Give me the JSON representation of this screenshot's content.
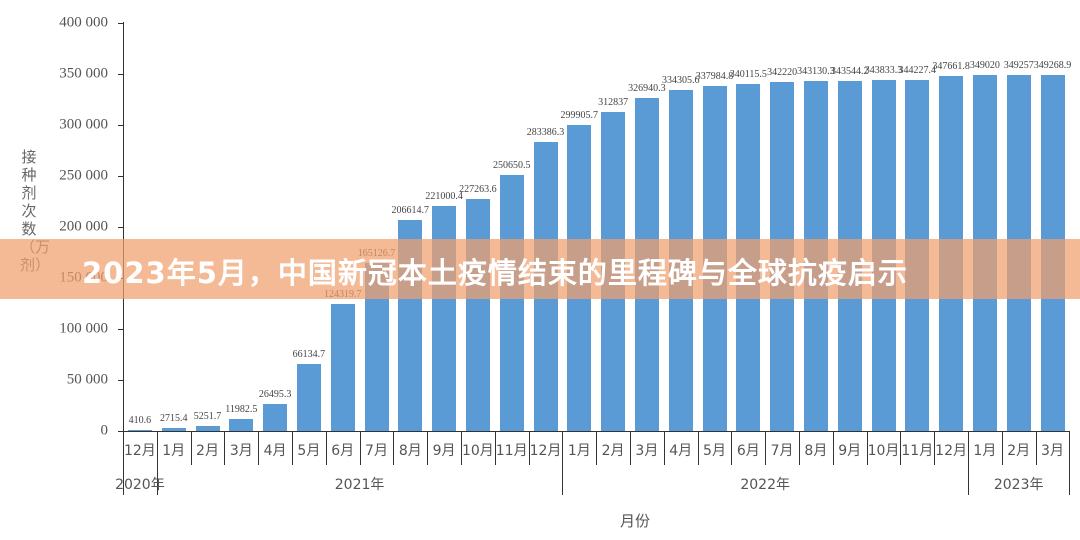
{
  "banner": {
    "title": "2023年5月，中国新冠本土疫情结束的里程碑与全球抗疫启示",
    "background_color": "#f0a06e"
  },
  "chart_data": {
    "type": "bar",
    "title": "",
    "xlabel": "月份",
    "ylabel": "接种剂次数（万剂）",
    "ylim": [
      0,
      400000
    ],
    "yticks": [
      "0",
      "50 000",
      "100 000",
      "150 000",
      "200 000",
      "250 000",
      "300 000",
      "350 000",
      "400 000"
    ],
    "grid": false,
    "bar_color": "#5b9bd5",
    "categories": [
      "12月",
      "1月",
      "2月",
      "3月",
      "4月",
      "5月",
      "6月",
      "7月",
      "8月",
      "9月",
      "10月",
      "11月",
      "12月",
      "1月",
      "2月",
      "3月",
      "4月",
      "5月",
      "6月",
      "7月",
      "8月",
      "9月",
      "10月",
      "11月",
      "12月",
      "1月",
      "2月",
      "3月"
    ],
    "years": [
      {
        "label": "2020年",
        "start": 0,
        "count": 1
      },
      {
        "label": "2021年",
        "start": 1,
        "count": 12
      },
      {
        "label": "2022年",
        "start": 13,
        "count": 12
      },
      {
        "label": "2023年",
        "start": 25,
        "count": 3
      }
    ],
    "values": [
      410.6,
      2715.4,
      5251.7,
      11982.5,
      26495.3,
      66134.7,
      124319.7,
      165126.7,
      206614.7,
      221000.4,
      227263.6,
      250650.5,
      283386.3,
      299905.7,
      312837,
      326940.3,
      334305.6,
      337984.8,
      340115.5,
      342220,
      343130.3,
      343544.2,
      343833.3,
      344227.4,
      347661.8,
      349020,
      349257,
      349268.9
    ],
    "value_labels": [
      "410.6",
      "2715.4",
      "5251.7",
      "11982.5",
      "26495.3",
      "66134.7",
      "124319.7",
      "165126.7",
      "206614.7",
      "221000.4",
      "227263.6",
      "250650.5",
      "283386.3",
      "299905.7",
      "312837",
      "326940.3",
      "334305.6",
      "337984.8",
      "340115.5",
      "342220",
      "343130.3",
      "343544.2",
      "343833.3",
      "344227.4",
      "347661.8",
      "349020",
      "349257",
      "349268.9"
    ]
  }
}
